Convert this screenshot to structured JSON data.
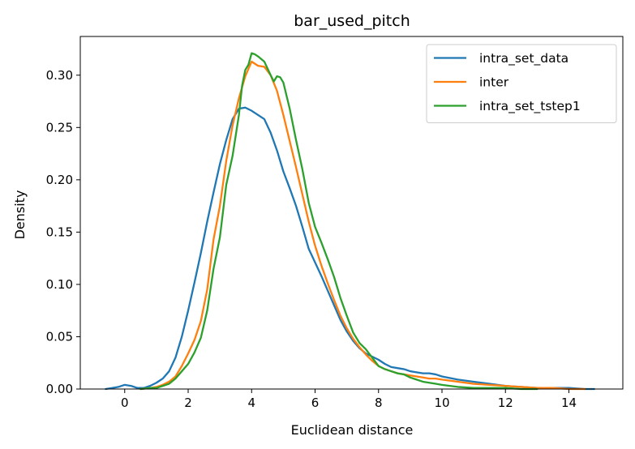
{
  "chart_data": {
    "type": "line",
    "title": "bar_used_pitch",
    "xlabel": "Euclidean distance",
    "ylabel": "Density",
    "xlim": [
      -1.4,
      15.7
    ],
    "ylim": [
      0,
      0.337
    ],
    "xticks": [
      0,
      2,
      4,
      6,
      8,
      10,
      12,
      14
    ],
    "yticks": [
      0.0,
      0.05,
      0.1,
      0.15,
      0.2,
      0.25,
      0.3
    ],
    "xtick_labels": [
      "0",
      "2",
      "4",
      "6",
      "8",
      "10",
      "12",
      "14"
    ],
    "ytick_labels": [
      "0.00",
      "0.05",
      "0.10",
      "0.15",
      "0.20",
      "0.25",
      "0.30"
    ],
    "grid": false,
    "legend_position": "top-right",
    "series": [
      {
        "name": "intra_set_data",
        "color": "#1f77b4",
        "x": [
          -0.6,
          -0.4,
          -0.2,
          0.0,
          0.2,
          0.4,
          0.6,
          0.8,
          1.0,
          1.2,
          1.4,
          1.6,
          1.8,
          2.0,
          2.2,
          2.4,
          2.6,
          2.8,
          3.0,
          3.2,
          3.4,
          3.6,
          3.8,
          4.0,
          4.2,
          4.4,
          4.6,
          4.8,
          5.0,
          5.2,
          5.4,
          5.6,
          5.8,
          6.0,
          6.2,
          6.4,
          6.6,
          6.8,
          7.0,
          7.2,
          7.4,
          7.6,
          7.8,
          8.0,
          8.2,
          8.4,
          8.6,
          8.8,
          9.0,
          9.2,
          9.4,
          9.6,
          9.8,
          10.0,
          10.5,
          11.0,
          11.5,
          12.0,
          12.5,
          13.0,
          13.5,
          14.0,
          14.5,
          14.8
        ],
        "y": [
          0.0,
          0.001,
          0.002,
          0.004,
          0.003,
          0.001,
          0.001,
          0.003,
          0.006,
          0.01,
          0.017,
          0.03,
          0.05,
          0.075,
          0.102,
          0.13,
          0.16,
          0.188,
          0.215,
          0.238,
          0.258,
          0.268,
          0.269,
          0.266,
          0.262,
          0.258,
          0.245,
          0.228,
          0.208,
          0.192,
          0.175,
          0.155,
          0.134,
          0.121,
          0.108,
          0.094,
          0.08,
          0.066,
          0.055,
          0.046,
          0.039,
          0.034,
          0.031,
          0.028,
          0.024,
          0.021,
          0.02,
          0.019,
          0.017,
          0.016,
          0.015,
          0.015,
          0.014,
          0.012,
          0.009,
          0.007,
          0.005,
          0.003,
          0.002,
          0.001,
          0.001,
          0.001,
          0.0,
          0.0
        ]
      },
      {
        "name": "inter",
        "color": "#ff7f0e",
        "x": [
          0.5,
          0.8,
          1.0,
          1.2,
          1.4,
          1.6,
          1.8,
          2.0,
          2.2,
          2.4,
          2.6,
          2.8,
          3.0,
          3.2,
          3.4,
          3.6,
          3.8,
          4.0,
          4.2,
          4.4,
          4.6,
          4.8,
          5.0,
          5.2,
          5.4,
          5.6,
          5.8,
          6.0,
          6.2,
          6.4,
          6.6,
          6.8,
          7.0,
          7.2,
          7.4,
          7.6,
          7.8,
          8.0,
          8.2,
          8.4,
          8.6,
          8.8,
          9.0,
          9.2,
          9.4,
          9.6,
          9.8,
          10.0,
          10.5,
          11.0,
          11.5,
          12.0,
          12.5,
          13.0,
          13.5,
          14.0,
          14.5
        ],
        "y": [
          0.0,
          0.001,
          0.002,
          0.004,
          0.007,
          0.012,
          0.022,
          0.034,
          0.047,
          0.065,
          0.095,
          0.143,
          0.175,
          0.218,
          0.252,
          0.278,
          0.299,
          0.313,
          0.309,
          0.308,
          0.3,
          0.285,
          0.262,
          0.237,
          0.212,
          0.186,
          0.16,
          0.137,
          0.118,
          0.101,
          0.085,
          0.07,
          0.058,
          0.048,
          0.04,
          0.033,
          0.027,
          0.022,
          0.019,
          0.017,
          0.015,
          0.014,
          0.013,
          0.012,
          0.011,
          0.01,
          0.01,
          0.009,
          0.007,
          0.005,
          0.004,
          0.003,
          0.002,
          0.001,
          0.001,
          0.0,
          0.0
        ]
      },
      {
        "name": "intra_set_tstep1",
        "color": "#2ca02c",
        "x": [
          0.5,
          0.8,
          1.0,
          1.2,
          1.4,
          1.6,
          1.8,
          2.0,
          2.2,
          2.4,
          2.6,
          2.8,
          3.0,
          3.2,
          3.4,
          3.6,
          3.7,
          3.8,
          3.9,
          4.0,
          4.1,
          4.2,
          4.4,
          4.6,
          4.7,
          4.8,
          4.9,
          5.0,
          5.2,
          5.4,
          5.6,
          5.8,
          6.0,
          6.2,
          6.4,
          6.6,
          6.8,
          7.0,
          7.2,
          7.4,
          7.6,
          7.8,
          8.0,
          8.2,
          8.4,
          8.6,
          8.8,
          9.0,
          9.2,
          9.4,
          9.6,
          9.8,
          10.0,
          10.5,
          11.0,
          11.5,
          12.0,
          12.5,
          13.0
        ],
        "y": [
          0.0,
          0.001,
          0.001,
          0.003,
          0.005,
          0.01,
          0.017,
          0.024,
          0.035,
          0.049,
          0.075,
          0.115,
          0.145,
          0.195,
          0.223,
          0.262,
          0.29,
          0.305,
          0.31,
          0.321,
          0.32,
          0.318,
          0.313,
          0.3,
          0.294,
          0.299,
          0.298,
          0.293,
          0.268,
          0.238,
          0.21,
          0.178,
          0.155,
          0.14,
          0.124,
          0.107,
          0.087,
          0.07,
          0.054,
          0.044,
          0.038,
          0.03,
          0.022,
          0.019,
          0.017,
          0.015,
          0.014,
          0.011,
          0.009,
          0.007,
          0.006,
          0.005,
          0.004,
          0.002,
          0.001,
          0.001,
          0.001,
          0.0,
          0.0
        ]
      }
    ]
  }
}
